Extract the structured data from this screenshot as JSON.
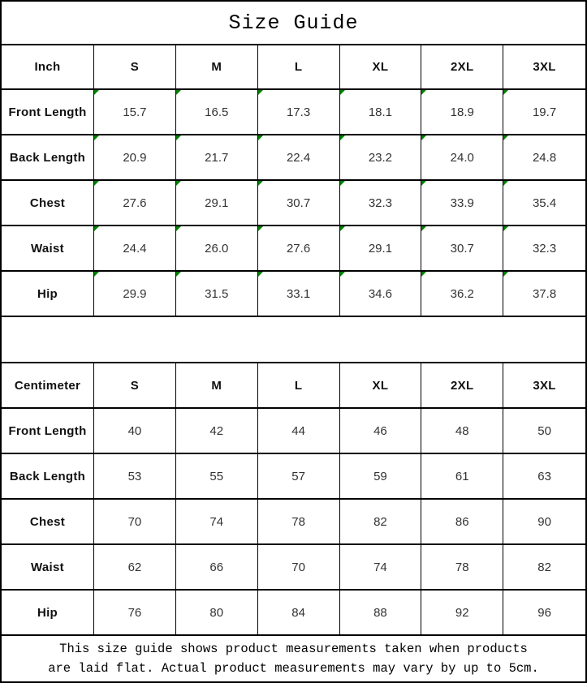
{
  "title": "Size Guide",
  "colors": {
    "border": "#000000",
    "flag_green": "#008000",
    "label_text": "#111111",
    "value_text": "#333333"
  },
  "inch_table": {
    "unit_label": "Inch",
    "sizes": [
      "S",
      "M",
      "L",
      "XL",
      "2XL",
      "3XL"
    ],
    "rows": [
      {
        "label": "Front Length",
        "values": [
          "15.7",
          "16.5",
          "17.3",
          "18.1",
          "18.9",
          "19.7"
        ]
      },
      {
        "label": "Back Length",
        "values": [
          "20.9",
          "21.7",
          "22.4",
          "23.2",
          "24.0",
          "24.8"
        ]
      },
      {
        "label": "Chest",
        "values": [
          "27.6",
          "29.1",
          "30.7",
          "32.3",
          "33.9",
          "35.4"
        ]
      },
      {
        "label": "Waist",
        "values": [
          "24.4",
          "26.0",
          "27.6",
          "29.1",
          "30.7",
          "32.3"
        ]
      },
      {
        "label": "Hip",
        "values": [
          "29.9",
          "31.5",
          "33.1",
          "34.6",
          "36.2",
          "37.8"
        ]
      }
    ]
  },
  "cm_table": {
    "unit_label": "Centimeter",
    "sizes": [
      "S",
      "M",
      "L",
      "XL",
      "2XL",
      "3XL"
    ],
    "rows": [
      {
        "label": "Front Length",
        "values": [
          "40",
          "42",
          "44",
          "46",
          "48",
          "50"
        ]
      },
      {
        "label": "Back Length",
        "values": [
          "53",
          "55",
          "57",
          "59",
          "61",
          "63"
        ]
      },
      {
        "label": "Chest",
        "values": [
          "70",
          "74",
          "78",
          "82",
          "86",
          "90"
        ]
      },
      {
        "label": "Waist",
        "values": [
          "62",
          "66",
          "70",
          "74",
          "78",
          "82"
        ]
      },
      {
        "label": "Hip",
        "values": [
          "76",
          "80",
          "84",
          "88",
          "92",
          "96"
        ]
      }
    ]
  },
  "footer": {
    "line1": "This size guide shows product measurements taken when products",
    "line2": "are laid flat. Actual product measurements may vary by up to 5cm."
  }
}
